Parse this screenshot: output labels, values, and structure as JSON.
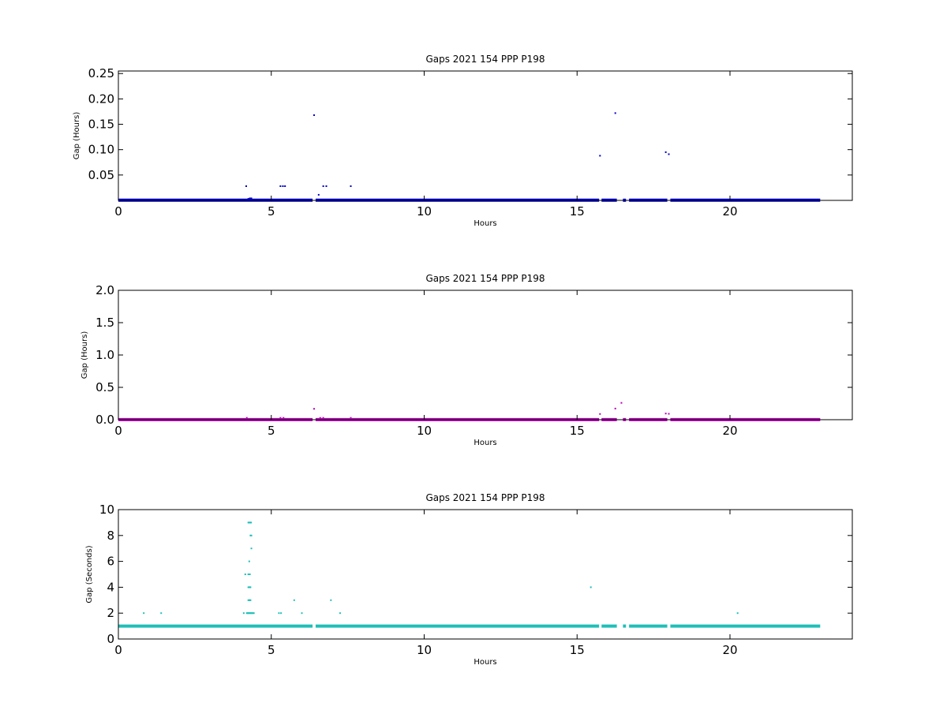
{
  "chart_data": [
    {
      "type": "scatter",
      "title": "Gaps 2021 154 PPP  P198",
      "xlabel": "Hours",
      "ylabel": "Gap (Hours)",
      "xlim": [
        0,
        24
      ],
      "ylim": [
        0,
        0.255
      ],
      "xticks": [
        0,
        5,
        10,
        15,
        20
      ],
      "xtick_labels": [
        "0",
        "5",
        "10",
        "15",
        "20"
      ],
      "yticks": [
        0.05,
        0.1,
        0.15,
        0.2,
        0.25
      ],
      "ytick_labels": [
        "0.05",
        "0.10",
        "0.15",
        "0.20",
        "0.25"
      ],
      "color": "#0000cc",
      "baseline": {
        "y": 0.0003,
        "segments": [
          [
            0,
            6.35
          ],
          [
            6.45,
            15.72
          ],
          [
            15.8,
            16.3
          ],
          [
            16.5,
            16.6
          ],
          [
            16.7,
            17.95
          ],
          [
            18.05,
            22.95
          ]
        ]
      },
      "points": {
        "x": [
          4.18,
          4.25,
          4.3,
          4.35,
          5.3,
          5.38,
          5.45,
          6.4,
          6.55,
          6.7,
          6.8,
          7.6,
          15.75,
          16.25,
          17.9,
          18.0
        ],
        "y": [
          0.028,
          0.003,
          0.004,
          0.004,
          0.028,
          0.028,
          0.028,
          0.168,
          0.011,
          0.028,
          0.028,
          0.028,
          0.088,
          0.172,
          0.095,
          0.091
        ]
      }
    },
    {
      "type": "scatter",
      "title": "Gaps 2021 154 PPP  P198",
      "xlabel": "Hours",
      "ylabel": "Gap (Hours)",
      "xlim": [
        0,
        24
      ],
      "ylim": [
        0,
        2
      ],
      "xticks": [
        0,
        5,
        10,
        15,
        20
      ],
      "xtick_labels": [
        "0",
        "5",
        "10",
        "15",
        "20"
      ],
      "yticks": [
        0.0,
        0.5,
        1.0,
        1.5,
        2.0
      ],
      "ytick_labels": [
        "0.0",
        "0.5",
        "1.0",
        "1.5",
        "2.0"
      ],
      "color": "#bb00bb",
      "baseline": {
        "y": 0.002,
        "segments": [
          [
            0,
            6.35
          ],
          [
            6.45,
            15.72
          ],
          [
            15.8,
            16.3
          ],
          [
            16.5,
            16.6
          ],
          [
            16.7,
            17.95
          ],
          [
            18.05,
            22.95
          ]
        ]
      },
      "points": {
        "x": [
          4.2,
          5.3,
          5.4,
          6.4,
          6.6,
          6.7,
          7.6,
          15.75,
          16.25,
          16.45,
          17.9,
          18.0
        ],
        "y": [
          0.028,
          0.028,
          0.028,
          0.168,
          0.028,
          0.028,
          0.028,
          0.088,
          0.172,
          0.26,
          0.095,
          0.091
        ]
      }
    },
    {
      "type": "scatter",
      "title": "Gaps 2021 154 PPP  P198",
      "xlabel": "Hours",
      "ylabel": "Gap (Seconds)",
      "xlim": [
        0,
        24
      ],
      "ylim": [
        0,
        10
      ],
      "xticks": [
        0,
        5,
        10,
        15,
        20
      ],
      "xtick_labels": [
        "0",
        "5",
        "10",
        "15",
        "20"
      ],
      "yticks": [
        0,
        2,
        4,
        6,
        8,
        10
      ],
      "ytick_labels": [
        "0",
        "2",
        "4",
        "6",
        "8",
        "10"
      ],
      "color": "#1fbfb8",
      "baseline": {
        "y": 1,
        "segments": [
          [
            0,
            6.35
          ],
          [
            6.45,
            15.72
          ],
          [
            15.8,
            16.3
          ],
          [
            16.5,
            16.6
          ],
          [
            16.7,
            17.95
          ],
          [
            18.05,
            22.95
          ]
        ]
      },
      "points": {
        "x": [
          0.83,
          1.4,
          4.1,
          4.15,
          4.2,
          4.22,
          4.25,
          4.27,
          4.3,
          4.32,
          4.35,
          4.37,
          4.4,
          4.43,
          4.25,
          4.28,
          4.3,
          4.32,
          4.25,
          4.3,
          4.28,
          4.32,
          4.25,
          4.3,
          4.35,
          4.28,
          4.32,
          4.35,
          4.25,
          4.27,
          4.3,
          4.32,
          4.34,
          5.25,
          5.32,
          5.75,
          6.0,
          6.95,
          7.25,
          15.45,
          20.25
        ],
        "y": [
          2,
          2,
          2,
          5,
          2,
          2,
          2,
          2,
          2,
          2,
          2,
          2,
          2,
          2,
          3,
          3,
          3,
          3,
          4,
          4,
          4,
          4,
          5,
          5,
          7,
          6,
          8,
          8,
          9,
          9,
          9,
          9,
          9,
          2,
          2,
          3,
          2,
          3,
          2,
          4,
          2
        ]
      }
    }
  ]
}
